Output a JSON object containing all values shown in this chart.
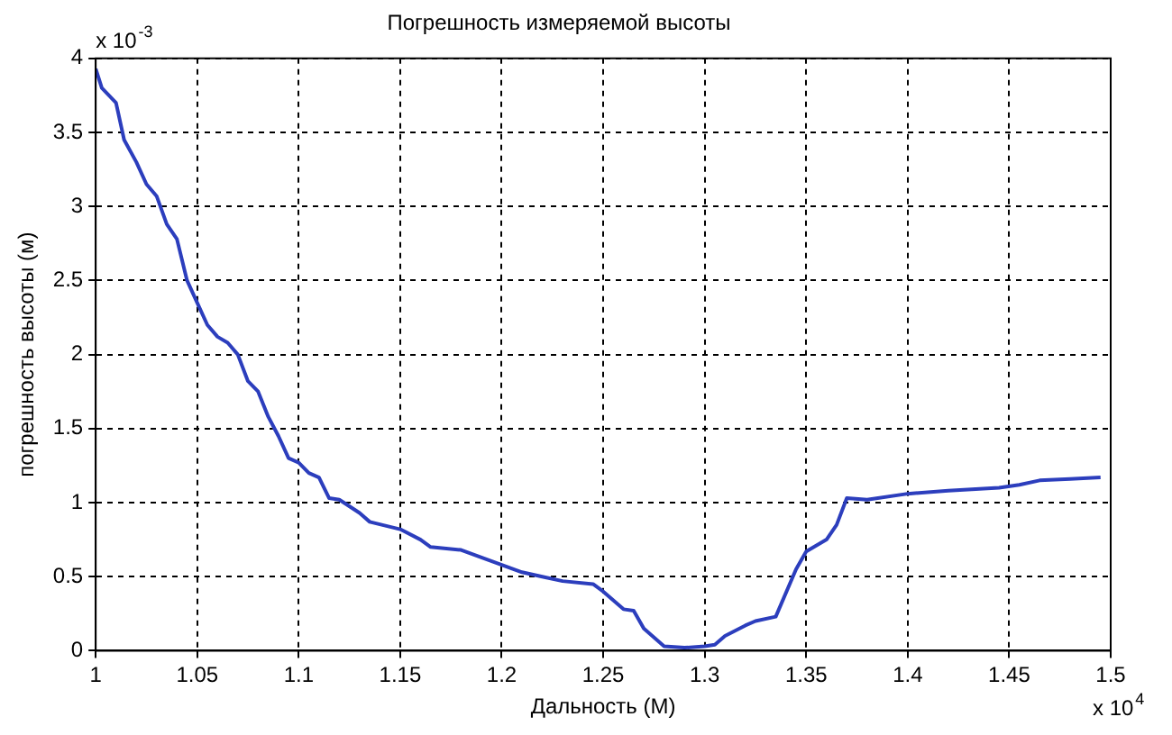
{
  "chart_data": {
    "type": "line",
    "title": "Погрешность измеряемой высоты",
    "xlabel": "Дальность (М)",
    "ylabel": "погрешность высоты (м)",
    "annotations": [
      "x 10$^{-3}$",
      "x 10$^{4}$"
    ],
    "xlim": [
      1,
      1.5
    ],
    "xticks": [
      1,
      1.05,
      1.1,
      1.15,
      1.2,
      1.25,
      1.3,
      1.35,
      1.4,
      1.45,
      1.5
    ],
    "ylim": [
      0,
      4
    ],
    "yticks": [
      0,
      0.5,
      1,
      1.5,
      2,
      2.5,
      3,
      3.5,
      4
    ],
    "grid": true,
    "legend": false,
    "marker": "none",
    "line_style": "solid",
    "series": [
      {
        "color": "#2c3ebd",
        "x": [
          1.0,
          1.003,
          1.01,
          1.014,
          1.02,
          1.025,
          1.03,
          1.035,
          1.04,
          1.045,
          1.05,
          1.055,
          1.06,
          1.065,
          1.07,
          1.075,
          1.08,
          1.085,
          1.09,
          1.095,
          1.1,
          1.105,
          1.11,
          1.115,
          1.12,
          1.13,
          1.135,
          1.15,
          1.16,
          1.165,
          1.18,
          1.2,
          1.21,
          1.22,
          1.23,
          1.245,
          1.25,
          1.26,
          1.265,
          1.27,
          1.28,
          1.29,
          1.3,
          1.305,
          1.31,
          1.32,
          1.325,
          1.335,
          1.345,
          1.35,
          1.36,
          1.365,
          1.37,
          1.38,
          1.4,
          1.42,
          1.445,
          1.455,
          1.465,
          1.48,
          1.495
        ],
        "values": [
          3.93,
          3.8,
          3.7,
          3.45,
          3.3,
          3.15,
          3.07,
          2.88,
          2.78,
          2.5,
          2.35,
          2.2,
          2.12,
          2.08,
          2.0,
          1.82,
          1.75,
          1.58,
          1.45,
          1.3,
          1.27,
          1.2,
          1.17,
          1.03,
          1.02,
          0.93,
          0.87,
          0.82,
          0.75,
          0.7,
          0.68,
          0.58,
          0.53,
          0.5,
          0.47,
          0.45,
          0.4,
          0.28,
          0.27,
          0.15,
          0.03,
          0.02,
          0.03,
          0.04,
          0.1,
          0.17,
          0.2,
          0.23,
          0.55,
          0.67,
          0.75,
          0.85,
          1.03,
          1.02,
          1.06,
          1.08,
          1.1,
          1.12,
          1.15,
          1.16,
          1.17
        ]
      }
    ]
  }
}
